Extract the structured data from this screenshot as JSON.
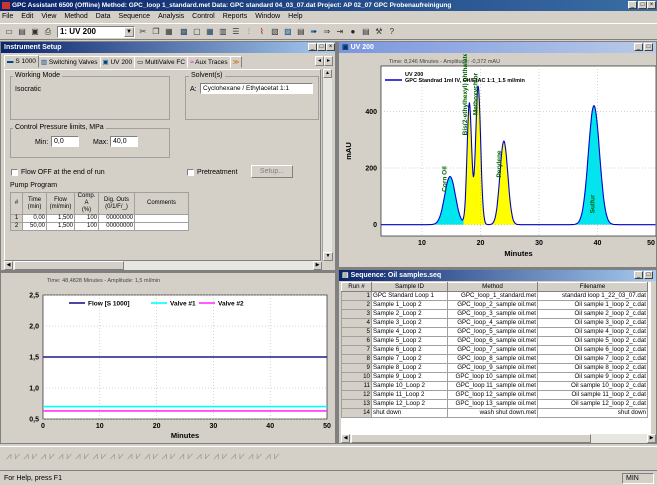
{
  "app": {
    "title": "GPC Assistant 6500 (Offline)    Method: GPC_loop 1_standard.met    Data: GPC standard 04_03_07.dat    Project: AP 02_07 GPC Probenaufreinigung"
  },
  "menu": [
    "File",
    "Edit",
    "View",
    "Method",
    "Data",
    "Sequence",
    "Analysis",
    "Control",
    "Reports",
    "Window",
    "Help"
  ],
  "toolbar": {
    "combo_value": "1: UV 200"
  },
  "instrument_setup": {
    "title": "Instrument Setup",
    "tabs": [
      "S 1000",
      "Switching Valves",
      "UV 200",
      "MultiValve FC",
      "Aux Traces"
    ],
    "working_mode_label": "Working Mode",
    "working_mode_value": "Isocratic",
    "solvents_label": "Solvent(s)",
    "solvent_prefix": "A:",
    "solvent_value": "Cyclohexane / Ethylacetat 1:1",
    "pressure_label": "Control Pressure limits, MPa",
    "min_label": "Min:",
    "min_value": "0,0",
    "max_label": "Max:",
    "max_value": "40,0",
    "flow_off_label": "Flow OFF at the end of run",
    "pretreatment_label": "Pretreatment",
    "setup_button": "Setup...",
    "pump_program_label": "Pump Program",
    "pump_columns": [
      "#",
      "Time\n(min)",
      "Flow\n(ml/min)",
      "Comp. A\n(%)",
      "Dig. Outs\n(0/1/F/_)",
      "Comments"
    ],
    "pump_rows": [
      [
        "1",
        "0,00",
        "1,500",
        "100",
        "00000000",
        ""
      ],
      [
        "2",
        "50,00",
        "1,500",
        "100",
        "00000000",
        ""
      ]
    ]
  },
  "flow_chart": {
    "header": "Time: 48,4828 Minutes - Amplitude: 1,5 ml/min",
    "legend": [
      "Flow [S 1000]",
      "Valve #1",
      "Valve #2"
    ],
    "yticks": [
      "2,5",
      "2,0",
      "1,5",
      "1,0",
      "0,5"
    ],
    "xticks": [
      "0",
      "10",
      "20",
      "30",
      "40",
      "50"
    ],
    "xlabel": "Minutes"
  },
  "uv_window": {
    "title": "UV 200"
  },
  "chromatogram": {
    "header": "Time: 8,246 Minutes - Amplitude: -0,372 mAU",
    "legend_title": "UV 200",
    "legend_series": "GPC Standrad 1ml IV,  CH/EtAC 1:1_1.5 ml/min",
    "ylabel": "mAU",
    "yticks": [
      "400",
      "200",
      "0"
    ],
    "xticks": [
      "10",
      "20",
      "30",
      "40",
      "50"
    ],
    "xlabel": "Minutes",
    "peak_labels": [
      "Corn Oil",
      "Bis(2-ethylhexyl) phthalate",
      "Methoxychlor",
      "Perylene",
      "Sulfur"
    ]
  },
  "chart_data": [
    {
      "type": "line",
      "title": "",
      "xlabel": "Minutes",
      "ylabel": "",
      "xlim": [
        0,
        50
      ],
      "ylim": [
        0.5,
        2.5
      ],
      "x": [
        0,
        50
      ],
      "series": [
        {
          "name": "Flow [S 1000]",
          "color": "#1a1a8c",
          "values": [
            1.5,
            1.5
          ]
        },
        {
          "name": "Valve #1",
          "color": "#00ffff",
          "values": [
            0.7,
            0.7
          ]
        },
        {
          "name": "Valve #2",
          "color": "#ff33ff",
          "values": [
            0.63,
            0.63
          ]
        }
      ]
    },
    {
      "type": "area",
      "title": "",
      "xlabel": "Minutes",
      "ylabel": "mAU",
      "xlim": [
        3,
        50
      ],
      "ylim": [
        -40,
        560
      ],
      "peaks": [
        {
          "name": "Corn Oil",
          "x": 14.8,
          "y": 170,
          "fill": "#00e5ee"
        },
        {
          "name": "Bis(2-ethylhexyl) phthalate",
          "x": 18.1,
          "y": 430,
          "fill": "#ffff00"
        },
        {
          "name": "Methoxychlor",
          "x": 19.6,
          "y": 490,
          "fill": "#ffff00"
        },
        {
          "name": "Perylene",
          "x": 24.0,
          "y": 295,
          "fill": "#ffff00"
        },
        {
          "name": "Sulfur",
          "x": 39.4,
          "y": 420,
          "fill": "#00e5ee"
        }
      ],
      "trace_color": "#0000cc"
    }
  ],
  "sequence": {
    "title": "Sequence: Oil samples.seq",
    "columns": [
      "Run #",
      "Sample ID",
      "Method",
      "Filename"
    ],
    "rows": [
      [
        "1",
        "GPC Standard Loop 1",
        "GPC_loop_1_standard.met",
        "standard loop 1_22_03_07.dat"
      ],
      [
        "2",
        "Sample 1_Loop 2",
        "GPC_loop_2_sample oil.met",
        "Oil sample 1_loop 2_c.dat"
      ],
      [
        "3",
        "Sample 2_Loop 2",
        "GPC_loop_3_sample oil.met",
        "Oil sample 2_loop 2_c.dat"
      ],
      [
        "4",
        "Sample 3_Loop 2",
        "GPC_loop_4_sample oil.met",
        "Oil sample 3_loop 2_c.dat"
      ],
      [
        "5",
        "Sample 4_Loop 2",
        "GPC_loop_5_sample oil.met",
        "Oil sample 4_loop 2_c.dat"
      ],
      [
        "6",
        "Sample 5_Loop 2",
        "GPC_loop_6_sample oil.met",
        "Oil sample 5_loop 2_c.dat"
      ],
      [
        "7",
        "Sample 6_Loop 2",
        "GPC_loop_7_sample oil.met",
        "Oil sample 6_loop 2_c.dat"
      ],
      [
        "8",
        "Sample 7_Loop 2",
        "GPC_loop_8_sample oil.met",
        "Oil sample 7_loop 2_c.dat"
      ],
      [
        "9",
        "Sample 8_Loop 2",
        "GPC_loop_9_sample oil.met",
        "Oil sample 8_loop 2_c.dat"
      ],
      [
        "10",
        "Sample 9_Loop 2",
        "GPC_loop 10_sample oil.met",
        "Oil sample 9_loop 2_c.dat"
      ],
      [
        "11",
        "Sample 10_Loop 2",
        "GPC_loop 11_sample oil.met",
        "Oil sample 10_loop 2_c.dat"
      ],
      [
        "12",
        "Sample 11_Loop 2",
        "GPC_loop 12_sample oil.met",
        "Oil sample 11_loop 2_c.dat"
      ],
      [
        "13",
        "Sample 12_Loop 2",
        "GPC_loop 13_sample oil.met",
        "Oil sample 12_loop 2_c.dat"
      ],
      [
        "14",
        "shut down",
        "wash    shut down.met",
        "shut down"
      ]
    ]
  },
  "status": {
    "left": "For Help, press F1",
    "right": "MIN"
  }
}
